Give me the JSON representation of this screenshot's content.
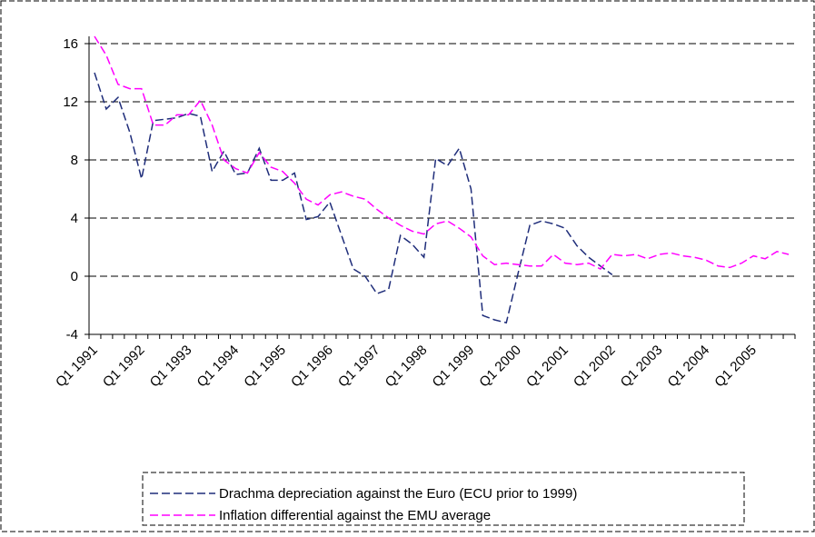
{
  "chart_data": {
    "type": "line",
    "categories": [
      "Q1 1991",
      null,
      null,
      null,
      "Q1 1992",
      null,
      null,
      null,
      "Q1 1993",
      null,
      null,
      null,
      "Q1 1994",
      null,
      null,
      null,
      "Q1 1995",
      null,
      null,
      null,
      "Q1 1996",
      null,
      null,
      null,
      "Q1 1997",
      null,
      null,
      null,
      "Q1 1998",
      null,
      null,
      null,
      "Q1 1999",
      null,
      null,
      null,
      "Q1 2000",
      null,
      null,
      null,
      "Q1 2001",
      null,
      null,
      null,
      "Q1 2002",
      null,
      null,
      null,
      "Q1 2003",
      null,
      null,
      null,
      "Q1 2004",
      null,
      null,
      null,
      "Q1 2005",
      null,
      null,
      null
    ],
    "series": [
      {
        "name": "Drachma depreciation against the Euro (ECU prior to 1999)",
        "color": "#1f2d7a",
        "values": [
          14.0,
          11.5,
          12.3,
          9.9,
          6.7,
          10.7,
          10.8,
          10.9,
          11.2,
          11.0,
          7.2,
          8.6,
          7.0,
          7.1,
          8.8,
          6.6,
          6.6,
          7.1,
          3.9,
          4.1,
          5.1,
          2.8,
          0.5,
          0.0,
          -1.2,
          -0.9,
          2.8,
          2.2,
          1.3,
          8.1,
          7.6,
          8.8,
          6.0,
          -2.7,
          -3.0,
          -3.2,
          0.2,
          3.5,
          3.8,
          3.6,
          3.3,
          2.1,
          1.3,
          0.7,
          0.1,
          null,
          null,
          null,
          null,
          null,
          null,
          null,
          null,
          null,
          null,
          null,
          null,
          null,
          null,
          null
        ]
      },
      {
        "name": "Inflation differential against the EMU average",
        "color": "#ff00ff",
        "values": [
          16.5,
          15.2,
          13.2,
          12.9,
          12.9,
          10.4,
          10.4,
          11.1,
          11.1,
          12.1,
          10.4,
          8.0,
          7.4,
          7.1,
          8.5,
          7.5,
          7.2,
          6.4,
          5.3,
          4.9,
          5.6,
          5.8,
          5.5,
          5.3,
          4.6,
          4.0,
          3.5,
          3.1,
          2.9,
          3.6,
          3.8,
          3.3,
          2.7,
          1.4,
          0.8,
          0.9,
          0.8,
          0.7,
          0.7,
          1.5,
          0.9,
          0.8,
          0.9,
          0.5,
          1.5,
          1.4,
          1.5,
          1.2,
          1.5,
          1.6,
          1.4,
          1.3,
          1.1,
          0.7,
          0.6,
          0.9,
          1.4,
          1.2,
          1.7,
          1.5
        ]
      }
    ],
    "ylim": [
      -4,
      16.5
    ],
    "yticks": [
      -4,
      0,
      4,
      8,
      12,
      16
    ],
    "grid": true
  }
}
